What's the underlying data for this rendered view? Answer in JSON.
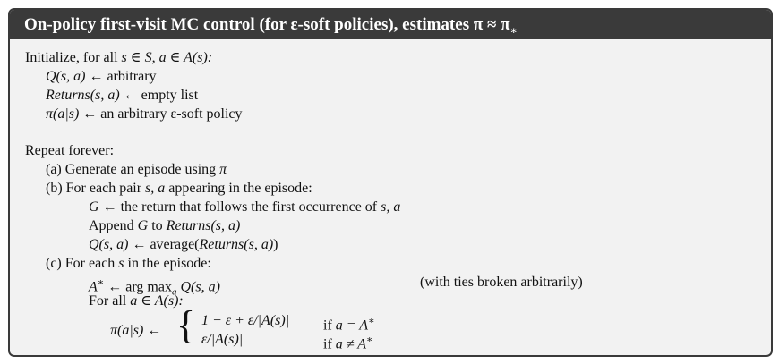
{
  "header": {
    "title": "On-policy first-visit MC control (for ε-soft policies), estimates π ≈ π"
  },
  "init": {
    "prefix": "Initialize, for all ",
    "cond": "s ∈ S, a ∈ A(s):",
    "q_lhs": "Q(s, a)",
    "q_rhs": "arbitrary",
    "ret_lhs": "Returns(s, a)",
    "ret_rhs": "empty list",
    "pi_lhs": "π(a|s)",
    "pi_rhs": "an arbitrary ε-soft policy"
  },
  "repeat": {
    "title": "Repeat forever:",
    "a_label": "(a) Generate an episode using ",
    "a_pi": "π",
    "b_label": "(b) For each pair ",
    "b_sa": "s, a",
    "b_rest": " appearing in the episode:",
    "g_lhs": "G",
    "g_rhs": " the return that follows the first occurrence of ",
    "g_sa": "s, a",
    "append_word": "Append ",
    "append_g": "G",
    "append_to": " to ",
    "append_ret": "Returns(s, a)",
    "qa_lhs": "Q(s, a)",
    "qa_avg": "average(",
    "qa_ret": "Returns(s, a)",
    "qa_close": ")",
    "c_label": "(c) For each ",
    "c_s": "s",
    "c_rest": " in the episode:",
    "astar_lhs": "A",
    "astar_rhs": "arg max",
    "astar_sub": "a",
    "astar_q": "Q(s, a)",
    "ties": "(with ties broken arbitrarily)",
    "forall": "For all ",
    "forall_cond": "a ∈ A(s):",
    "pi_lhs": "π(a|s)",
    "case1_expr": "1 − ε + ε/|A(s)|",
    "case1_if": "if ",
    "case1_cond": "a = A",
    "case2_expr": "ε/|A(s)|",
    "case2_if": "if ",
    "case2_cond": "a ≠ A"
  }
}
